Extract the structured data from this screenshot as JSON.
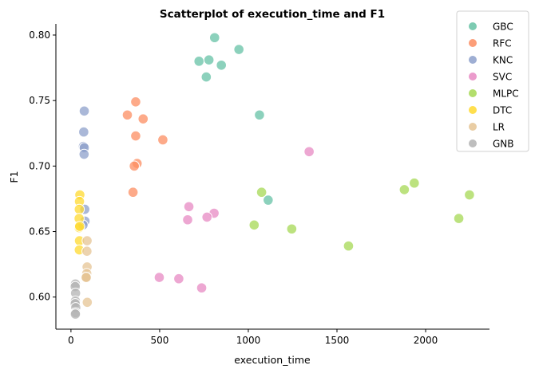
{
  "chart_data": {
    "type": "scatter",
    "title": "Scatterplot of execution_time and F1",
    "xlabel": "execution_time",
    "ylabel": "F1",
    "xlim": [
      -85,
      2360
    ],
    "ylim": [
      0.5755,
      0.8085
    ],
    "xticks": [
      0,
      500,
      1000,
      1500,
      2000
    ],
    "yticks": [
      0.6,
      0.65,
      0.7,
      0.75,
      0.8
    ],
    "ytick_labels": [
      "0.60",
      "0.65",
      "0.70",
      "0.75",
      "0.80"
    ],
    "grid": false,
    "legend_position": "top-right",
    "series": [
      {
        "name": "GBC",
        "color": "#66c2a5",
        "points": [
          [
            810,
            0.798
          ],
          [
            947,
            0.789
          ],
          [
            722,
            0.78
          ],
          [
            778,
            0.781
          ],
          [
            848,
            0.777
          ],
          [
            763,
            0.768
          ],
          [
            1063,
            0.739
          ],
          [
            1112,
            0.674
          ]
        ]
      },
      {
        "name": "RFC",
        "color": "#fc8d62",
        "points": [
          [
            365,
            0.749
          ],
          [
            318,
            0.739
          ],
          [
            407,
            0.736
          ],
          [
            365,
            0.723
          ],
          [
            518,
            0.72
          ],
          [
            373,
            0.702
          ],
          [
            357,
            0.7
          ],
          [
            350,
            0.68
          ]
        ]
      },
      {
        "name": "KNC",
        "color": "#8da0cb",
        "points": [
          [
            75,
            0.742
          ],
          [
            72,
            0.726
          ],
          [
            70,
            0.715
          ],
          [
            75,
            0.714
          ],
          [
            74,
            0.709
          ],
          [
            78,
            0.667
          ],
          [
            79,
            0.658
          ],
          [
            68,
            0.655
          ]
        ]
      },
      {
        "name": "SVC",
        "color": "#e78ac3",
        "points": [
          [
            1343,
            0.711
          ],
          [
            665,
            0.669
          ],
          [
            807,
            0.664
          ],
          [
            767,
            0.661
          ],
          [
            658,
            0.659
          ],
          [
            498,
            0.615
          ],
          [
            608,
            0.614
          ],
          [
            737,
            0.607
          ]
        ]
      },
      {
        "name": "MLPC",
        "color": "#a6d854",
        "points": [
          [
            1075,
            0.68
          ],
          [
            2247,
            0.678
          ],
          [
            1936,
            0.687
          ],
          [
            1880,
            0.682
          ],
          [
            1033,
            0.655
          ],
          [
            1245,
            0.652
          ],
          [
            2187,
            0.66
          ],
          [
            1565,
            0.639
          ]
        ]
      },
      {
        "name": "DTC",
        "color": "#ffd92f",
        "points": [
          [
            50,
            0.678
          ],
          [
            48,
            0.673
          ],
          [
            47,
            0.667
          ],
          [
            46,
            0.66
          ],
          [
            46,
            0.653
          ],
          [
            48,
            0.643
          ],
          [
            47,
            0.636
          ],
          [
            49,
            0.654
          ]
        ]
      },
      {
        "name": "LR",
        "color": "#e5c494",
        "points": [
          [
            91,
            0.643
          ],
          [
            90,
            0.635
          ],
          [
            91,
            0.623
          ],
          [
            89,
            0.618
          ],
          [
            88,
            0.615
          ],
          [
            85,
            0.615
          ],
          [
            92,
            0.596
          ],
          [
            86,
            0.615
          ]
        ]
      },
      {
        "name": "GNB",
        "color": "#b3b3b3",
        "points": [
          [
            25,
            0.61
          ],
          [
            24,
            0.608
          ],
          [
            26,
            0.603
          ],
          [
            25,
            0.597
          ],
          [
            24,
            0.595
          ],
          [
            27,
            0.592
          ],
          [
            26,
            0.588
          ],
          [
            25,
            0.587
          ]
        ]
      }
    ]
  }
}
